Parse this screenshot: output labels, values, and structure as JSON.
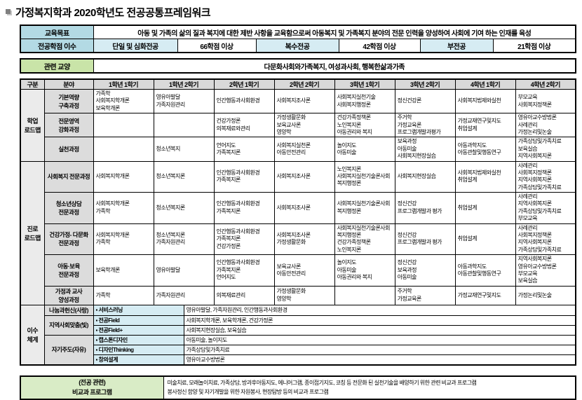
{
  "title": {
    "text": "가정복지학과 2020학년도 전공공통프레임워크"
  },
  "colors": {
    "label_blue": "#b3dae4",
    "value_blue": "#d6ecf3",
    "liberal_green": "#c9e4a8",
    "note_green": "#d9ecc6",
    "header_gray": "#d9d9d9",
    "category_gray": "#dcdcdc",
    "group_gray": "#ebebeb",
    "program_blue": "#d6ecf3",
    "border": "#000000"
  },
  "goal": {
    "label": "교육목표",
    "text": "아동 및 가족의 삶의 질과 복지에 대한 제반 사항을 교육함으로써 아동복지 및 가족복지 분야의 전문 인력을 양성하여 사회에 기여 하는 인재를 육성"
  },
  "credits": {
    "label": "전공학점 이수",
    "items": [
      {
        "name": "단일 및 심화전공",
        "value": "66학점 이상"
      },
      {
        "name": "복수전공",
        "value": "42학점 이상"
      },
      {
        "name": "부전공",
        "value": "21학점 이상"
      }
    ]
  },
  "liberal": {
    "label": "관련 교양",
    "text": "다문화사회와가족복지, 여성과사회, 행복한삶과가족"
  },
  "matrix": {
    "headers": [
      "구분",
      "분야",
      "1학년 1학기",
      "1학년 2학기",
      "2학년 1학기",
      "2학년 2학기",
      "3학년 1학기",
      "3학년 2학기",
      "4학년 1학기",
      "4학년 2학기"
    ],
    "groups": [
      {
        "name": "학업\n로드맵",
        "rows": [
          {
            "category": "기본역량\n구축과정",
            "cells": [
              [
                "가족학",
                "사회복지학개론",
                "보육학개론"
              ],
              [
                "영유아발달",
                "가족자원관리"
              ],
              [
                "인간행동과사회환경"
              ],
              [
                "사회복지조사론"
              ],
              [
                "사회복지실천기술",
                "사회복지행정론"
              ],
              [
                "정신건강론"
              ],
              [
                "사회복지법제와실천"
              ],
              [
                "부모교육",
                "사회복지정책론"
              ]
            ]
          },
          {
            "category": "전문영역\n강화과정",
            "cells": [
              [],
              [],
              [
                "건강가정론",
                "의복재료와관리"
              ],
              [
                "가정생활문화",
                "보육교사론",
                "영양학"
              ],
              [
                "건강가족정책론",
                "노인복지론",
                "아동권리와 복지"
              ],
              [
                "주거학",
                "가정교육론",
                "프로그램개발과평가"
              ],
              [
                "가정교재연구및지도",
                "취업설계"
              ],
              [
                "영유아교수방법론",
                "사례관리",
                "가정논리및논술"
              ]
            ]
          },
          {
            "category": "실천과정",
            "cells": [
              [],
              [
                "청소년복지"
              ],
              [
                "언어지도",
                "가족복지론"
              ],
              [
                "사회복지실천론",
                "아동안전관리"
              ],
              [
                "놀이지도",
                "아동미술"
              ],
              [
                "보육과정",
                "아동미술",
                "사회복지현장실습"
              ],
              [
                "아동과학지도",
                "아동관찰및행동연구"
              ],
              [
                "가족상담및가족치료",
                "보육실습",
                "지역사회복지론"
              ]
            ]
          }
        ]
      },
      {
        "name": "진로\n로드맵",
        "rows": [
          {
            "category": "사회복지 전문과정",
            "cells": [
              [
                "사회복지학개론"
              ],
              [
                "청소년복지론"
              ],
              [
                "인간행동과사회환경",
                "가족복지론"
              ],
              [
                "사회복지조사론"
              ],
              [
                "노인복지론",
                "사회복지실천기술론사회복지행정론"
              ],
              [
                "사회복지현장실습"
              ],
              [
                "사회복지법제와실천",
                "취업설계"
              ],
              [
                "사례관리",
                "사회복지정책론",
                "지역사회복지론",
                "가족상담및가족치료"
              ]
            ]
          },
          {
            "category": "청소년상담\n전문과정",
            "cells": [
              [
                "사회복지학개론",
                "가족학"
              ],
              [
                "청소년복지론"
              ],
              [
                "인간행동과사회환경",
                "가족복지론"
              ],
              [
                "사회복지조사론"
              ],
              [
                "사회복지실천기술론사회복지행정론"
              ],
              [
                "정신건강",
                "프로그램개발과 평가"
              ],
              [
                "취업설계"
              ],
              [
                "사례관리",
                "지역사회복지론",
                "가족상담및가족치료",
                "부모교육"
              ]
            ]
          },
          {
            "category": "건강가정- 다문화\n전문과정",
            "cells": [
              [
                "사회복지학개론",
                "가족학"
              ],
              [
                "청소년복지론",
                "가족자원관리"
              ],
              [
                "인간행동과사회환경",
                "가족복지론",
                "건강가정론"
              ],
              [
                "사회복지조사론",
                "가정생활문화"
              ],
              [
                "사회복지실천기술론사회복지행정론",
                "건강가족정책론",
                "노인복지론"
              ],
              [
                "정신건강",
                "프로그램개발과 평가"
              ],
              [
                "취업설계"
              ],
              [
                "사례관리",
                "사회복지정책론",
                "지역사회복지론",
                "가족상담및가족치료"
              ]
            ]
          },
          {
            "category": "아동·보육\n전문과정",
            "cells": [
              [
                "보육학개론"
              ],
              [
                "영유아발달"
              ],
              [
                "인간행동과사회환경",
                "가족복지론",
                "언어지도"
              ],
              [
                "보육교사론",
                "아동안전관리"
              ],
              [
                "놀이지도",
                "아동미술",
                "아동권리와 복지"
              ],
              [
                "정신건강",
                "보육과정",
                "아동미술"
              ],
              [
                "아동과학지도",
                "아동관찰및행동연구"
              ],
              [
                "지역사회복지론",
                "영유아교수방법론",
                "부모교육",
                "보육실습"
              ]
            ]
          },
          {
            "category": "가정과 교사\n양성과정",
            "cells": [
              [
                "가족학"
              ],
              [
                "가족자원관리"
              ],
              [
                "의복재료관리"
              ],
              [
                "가정생활문화",
                "영양학"
              ],
              [],
              [
                "주거학",
                "가정교육론"
              ],
              [
                "가정교재연구및지도"
              ],
              [
                "가정논리및논술"
              ]
            ]
          }
        ]
      }
    ]
  },
  "system": {
    "group": "이수\n체계",
    "bullet": "▪",
    "categories": [
      {
        "name": "나눔과헌신(사랑)",
        "programs": [
          {
            "name": "서비스러닝",
            "courses": "영유아발달, 가족자원관리, 인간행동과사회환경"
          }
        ]
      },
      {
        "name": "지역사회맞춤(빛)",
        "programs": [
          {
            "name": "전공Field",
            "courses": "사회복지학개론, 보육학개론, 건강가정론"
          },
          {
            "name": "전공Field+",
            "courses": "사회복지현장실습, 보육실습"
          }
        ]
      },
      {
        "name": "자기주도(자유)",
        "programs": [
          {
            "name": "캡스톤디자인",
            "courses": "아동미술, 놀이지도"
          },
          {
            "name": "디자인Thinking",
            "courses": "가족상담및가족치료"
          },
          {
            "name": "창의설계",
            "courses": "영유아교수방법론"
          }
        ]
      }
    ]
  },
  "note": {
    "label_line1": "(전공 관련)",
    "label_line2": "비교과 프로그램",
    "lines": [
      "미술치료, 모래놀이치료, 가족상담, 방과후아동지도, 에니어그램, 종이접기지도, 코칭 등 전문화 된 실천기술을 배양하기 위한 관련 비교과 프로그램",
      "봉사정신 함양 및 자기개발을 위한 자원봉사, 현장탐방 등의 비교과 프로그램"
    ]
  }
}
